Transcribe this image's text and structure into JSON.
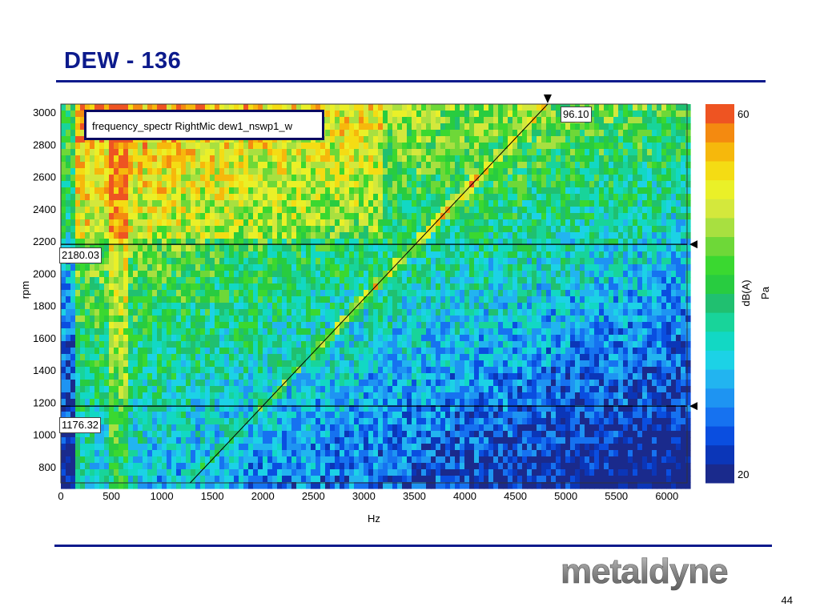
{
  "slide": {
    "title": "DEW - 136",
    "page_number": "44",
    "logo_text": "metaldyne"
  },
  "colors": {
    "title": "#0c1a8c",
    "rule": "#0c1a8c",
    "colormap": [
      "#1a2a8c",
      "#0b36b8",
      "#0a4ee0",
      "#1672f0",
      "#1e94f2",
      "#22b4f0",
      "#1cd2e6",
      "#12d8c4",
      "#18d49a",
      "#20c070",
      "#28cc40",
      "#3ad830",
      "#6ed838",
      "#a8e040",
      "#d4e83c",
      "#eaf028",
      "#f4dc14",
      "#f6b80c",
      "#f48a10",
      "#ee5422"
    ]
  },
  "chart_data": {
    "type": "heatmap",
    "legend_label": "frequency_spectr RightMic  dew1_nswp1_w",
    "xlabel": "Hz",
    "ylabel": "rpm",
    "xlim": [
      0,
      6200
    ],
    "ylim": [
      700,
      3050
    ],
    "x_ticks": [
      0,
      500,
      1000,
      1500,
      2000,
      2500,
      3000,
      3500,
      4000,
      4500,
      5000,
      5500,
      6000
    ],
    "y_ticks": [
      800,
      1000,
      1200,
      1400,
      1600,
      1800,
      2000,
      2200,
      2400,
      2600,
      2800,
      3000
    ],
    "colorbar": {
      "label": "dB(A)",
      "unit": "Pa",
      "min_label": "20",
      "max_label": "60",
      "min": 20,
      "max": 60
    },
    "cursors": {
      "upper_rpm": "2180.03",
      "lower_rpm": "1176.32",
      "upper_rpm_value": 2180.03,
      "lower_rpm_value": 1176.32,
      "order_label": "96.10",
      "order_line": [
        [
          1280,
          700
        ],
        [
          4820,
          3050
        ]
      ]
    },
    "grid": false
  }
}
